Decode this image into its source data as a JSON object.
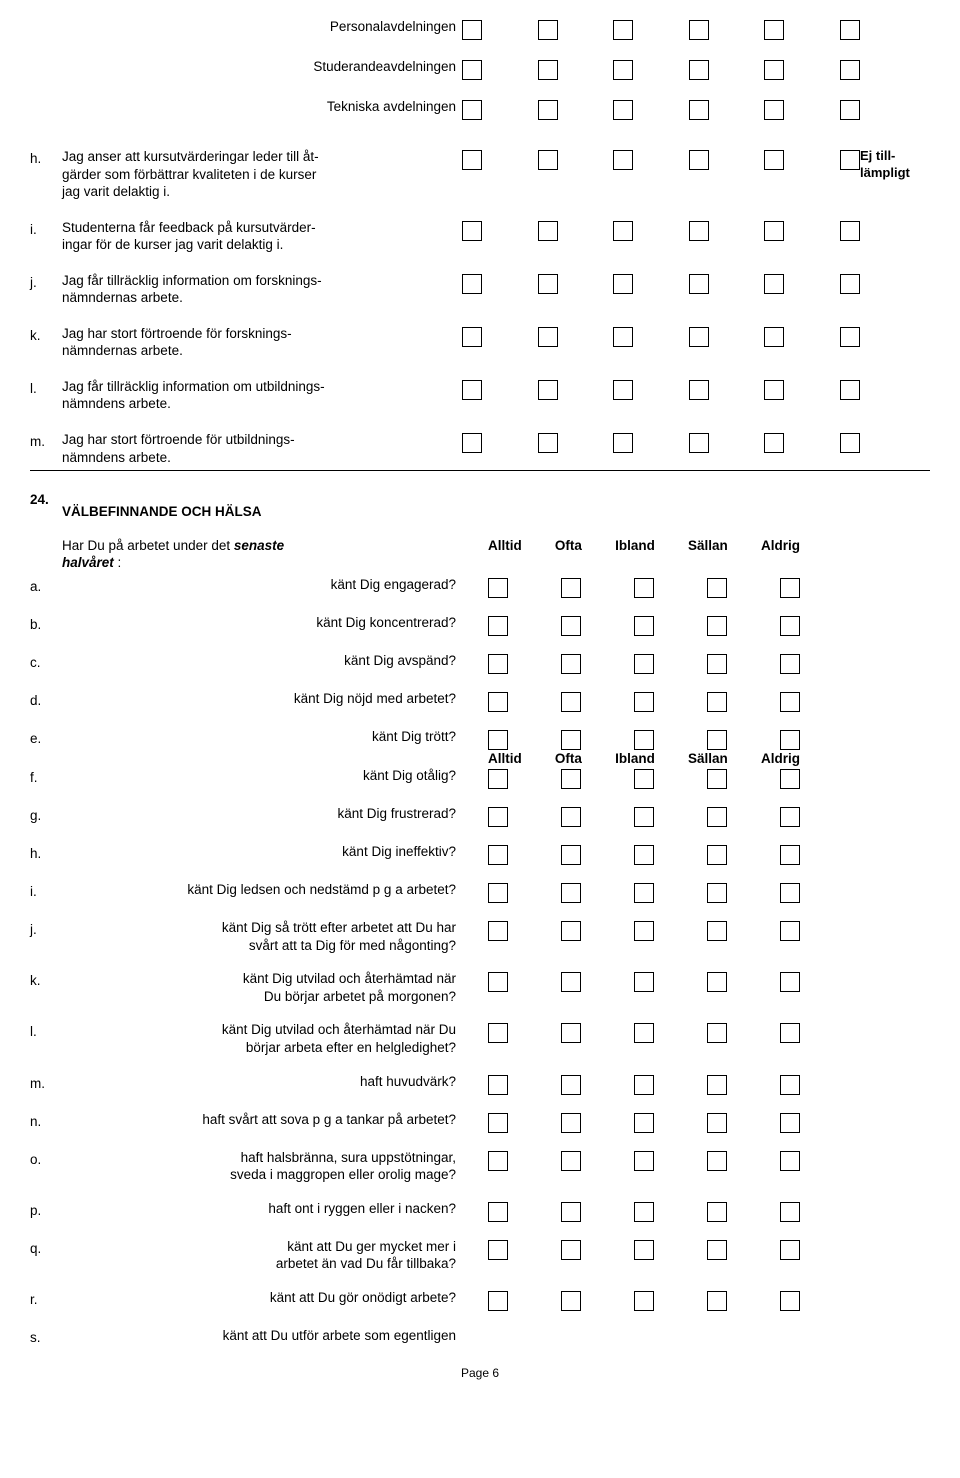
{
  "section_top": {
    "dept_rows": [
      {
        "label": "Personalavdelningen"
      },
      {
        "label": "Studerandeavdelningen"
      },
      {
        "label": "Tekniska avdelningen"
      }
    ],
    "items": [
      {
        "letter": "h.",
        "lines": [
          "Jag anser att kursutvärderingar leder till åt-",
          "gärder som förbättrar kvaliteten i de kurser",
          "jag varit delaktig i."
        ],
        "corner": true,
        "corner_lines": [
          "Ej till-",
          "lämpligt"
        ]
      },
      {
        "letter": "i.",
        "lines": [
          "Studenterna får feedback på kursutvärder-",
          "ingar för de kurser jag varit delaktig i."
        ]
      },
      {
        "letter": "j.",
        "lines": [
          "Jag får tillräcklig information om forsknings-",
          "nämndernas arbete."
        ]
      },
      {
        "letter": "k.",
        "lines": [
          "Jag har stort förtroende för forsknings-",
          "nämndernas arbete."
        ]
      },
      {
        "letter": "l.",
        "lines": [
          "Jag får tillräcklig information om utbildnings-",
          "nämndens arbete."
        ]
      },
      {
        "letter": "m.",
        "lines": [
          "Jag har stort förtroende för utbildnings-",
          "nämndens arbete."
        ],
        "underline": true
      }
    ]
  },
  "section_24": {
    "number": "24.",
    "title": "VÄLBEFINNANDE OCH HÄLSA",
    "prompt_plain1": "Har Du på arbetet under det ",
    "prompt_italic1": "senaste",
    "prompt_italic2": "halvåret",
    "prompt_plain2": " :",
    "headers": [
      "Alltid",
      "Ofta",
      "Ibland",
      "Sällan",
      "Aldrig"
    ],
    "items": [
      {
        "letter": "a.",
        "text": "känt Dig engagerad?",
        "first_with_prompt": true
      },
      {
        "letter": "b.",
        "text": "känt Dig koncentrerad?"
      },
      {
        "letter": "c.",
        "text": "känt Dig avspänd?"
      },
      {
        "letter": "d.",
        "text": "känt Dig nöjd med arbetet?"
      },
      {
        "letter": "e.",
        "text": "känt Dig trött?",
        "header_below": true
      },
      {
        "letter": "f.",
        "text": "känt Dig otålig?"
      },
      {
        "letter": "g.",
        "text": "känt Dig frustrerad?"
      },
      {
        "letter": "h.",
        "text": "känt Dig ineffektiv?"
      },
      {
        "letter": "i.",
        "text": "känt Dig ledsen och nedstämd p g a arbetet?"
      },
      {
        "letter": "j.",
        "lines": [
          "känt Dig så trött efter arbetet att Du har",
          "svårt att ta Dig för med någonting?"
        ]
      },
      {
        "letter": "k.",
        "lines": [
          "känt Dig utvilad och återhämtad när",
          "Du börjar arbetet på morgonen?"
        ]
      },
      {
        "letter": "l.",
        "lines": [
          "känt Dig utvilad och återhämtad när Du",
          "börjar arbeta efter en helgledighet?"
        ]
      },
      {
        "letter": "m.",
        "text": "haft huvudvärk?"
      },
      {
        "letter": "n.",
        "text": "haft svårt att sova p g a tankar på arbetet?"
      },
      {
        "letter": "o.",
        "lines": [
          "haft halsbränna, sura uppstötningar,",
          "sveda i maggropen eller orolig mage?"
        ]
      },
      {
        "letter": "p.",
        "text": "haft ont i ryggen eller i nacken?"
      },
      {
        "letter": "q.",
        "lines": [
          "känt att Du ger mycket mer i",
          "arbetet än vad Du får tillbaka?"
        ]
      },
      {
        "letter": "r.",
        "text": "känt att Du gör onödigt arbete?"
      },
      {
        "letter": "s.",
        "text": "känt att Du utför arbete som egentligen",
        "noboxes": true
      }
    ]
  },
  "footer": "Page 6"
}
